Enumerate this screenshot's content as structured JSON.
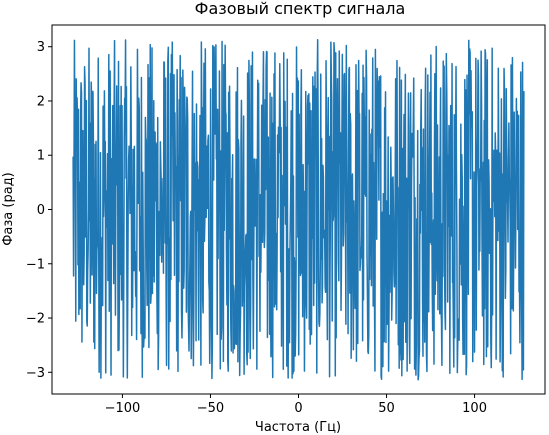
{
  "chart_data": {
    "type": "line",
    "title": "Фазовый спектр сигнала",
    "xlabel": "Частота (Гц)",
    "ylabel": "Фаза (рад)",
    "xlim": [
      -140,
      140
    ],
    "ylim": [
      -3.4,
      3.4
    ],
    "x_range": [
      -128,
      128
    ],
    "x_ticks": [
      -100,
      -50,
      0,
      50,
      100
    ],
    "x_tick_labels": [
      "−100",
      "−50",
      "0",
      "50",
      "100"
    ],
    "y_ticks": [
      -3,
      -2,
      -1,
      0,
      1,
      2,
      3
    ],
    "y_tick_labels": [
      "−3",
      "−2",
      "−1",
      "0",
      "1",
      "2",
      "3"
    ],
    "grid": false,
    "legend": false,
    "series": [
      {
        "color": "#1f77b4",
        "description": "noisy phase values spanning approximately -3.14 to 3.14 radians across all frequencies from -128 to 128 Hz"
      }
    ]
  }
}
